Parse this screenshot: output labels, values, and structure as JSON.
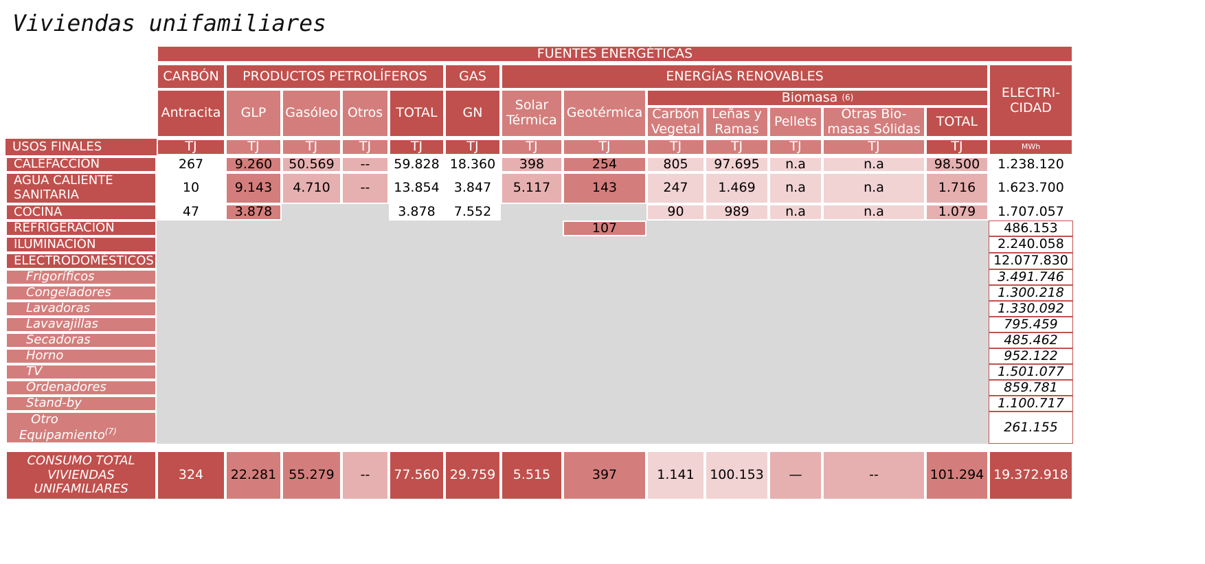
{
  "title": "Viviendas unifamiliares",
  "colors": {
    "dark": "#c0504d",
    "mid": "#d37e7c",
    "light": "#e6b0b0",
    "pale": "#f1d3d3",
    "grey": "#d9d9d9",
    "white": "#ffffff"
  },
  "headers": {
    "fuentes": "FUENTES ENERGÉTICAS",
    "carbon": "CARBÓN",
    "petroliferos": "PRODUCTOS PETROLÍFEROS",
    "gas": "GAS",
    "renovables": "ENERGÍAS RENOVABLES",
    "electricidad_1": "ELECTRI-",
    "electricidad_2": "CIDAD",
    "biomasa": "Biomasa",
    "biomasa_note": "(6)",
    "antracita": "Antracita",
    "glp": "GLP",
    "gasoleo": "Gasóleo",
    "otros": "Otros",
    "total_pet": "TOTAL",
    "gn": "GN",
    "solar_1": "Solar",
    "solar_2": "Térmica",
    "geotermica": "Geotérmica",
    "carbon_veg_1": "Carbón",
    "carbon_veg_2": "Vegetal",
    "lenas_1": "Leñas y",
    "lenas_2": "Ramas",
    "pellets": "Pellets",
    "otras_1": "Otras Bio-",
    "otras_2": "masas Sólidas",
    "total_ren": "TOTAL",
    "usos_finales": "USOS FINALES",
    "unit_tj": "TJ",
    "unit_mwh": "MWh"
  },
  "rows": {
    "calefaccion": {
      "label": "CALEFACCIÓN",
      "v": [
        "267",
        "9.260",
        "50.569",
        "--",
        "59.828",
        "18.360",
        "398",
        "254",
        "805",
        "97.695",
        "n.a",
        "n.a",
        "98.500",
        "1.238.120"
      ]
    },
    "acs": {
      "label_1": "AGUA CALIENTE",
      "label_2": "SANITARIA",
      "v": [
        "10",
        "9.143",
        "4.710",
        "--",
        "13.854",
        "3.847",
        "5.117",
        "143",
        "247",
        "1.469",
        "n.a",
        "n.a",
        "1.716",
        "1.623.700"
      ]
    },
    "cocina": {
      "label": "COCINA",
      "v": [
        "47",
        "3.878",
        "3.878",
        "7.552",
        "90",
        "989",
        "n.a",
        "n.a",
        "1.079",
        "1.707.057"
      ]
    },
    "refrigeracion": {
      "label": "REFRIGERACIÓN",
      "geo": "107",
      "elec": "486.153"
    },
    "iluminacion": {
      "label": "ILUMINACIÓN",
      "elec": "2.240.058"
    },
    "electrodomesticos": {
      "label": "ELECTRODOMÉSTICOS",
      "elec": "12.077.830"
    },
    "frigorificos": {
      "label": "Frigoríficos",
      "elec": "3.491.746"
    },
    "congeladores": {
      "label": "Congeladores",
      "elec": "1.300.218"
    },
    "lavadoras": {
      "label": "Lavadoras",
      "elec": "1.330.092"
    },
    "lavavajillas": {
      "label": "Lavavajillas",
      "elec": "795.459"
    },
    "secadoras": {
      "label": "Secadoras",
      "elec": "485.462"
    },
    "horno": {
      "label": "Horno",
      "elec": "952.122"
    },
    "tv": {
      "label": "TV",
      "elec": "1.501.077"
    },
    "ordenadores": {
      "label": "Ordenadores",
      "elec": "859.781"
    },
    "standby": {
      "label": "Stand-by",
      "elec": "1.100.717"
    },
    "otro": {
      "label_1": "Otro",
      "label_2": "Equipamiento",
      "note": "(7)",
      "elec": "261.155"
    }
  },
  "total": {
    "label_1": "CONSUMO TOTAL",
    "label_2": "VIVIENDAS",
    "label_3": "UNIFAMILIARES",
    "v": [
      "324",
      "22.281",
      "55.279",
      "--",
      "77.560",
      "29.759",
      "5.515",
      "397",
      "1.141",
      "100.153",
      "—",
      "--",
      "101.294",
      "19.372.918"
    ]
  }
}
